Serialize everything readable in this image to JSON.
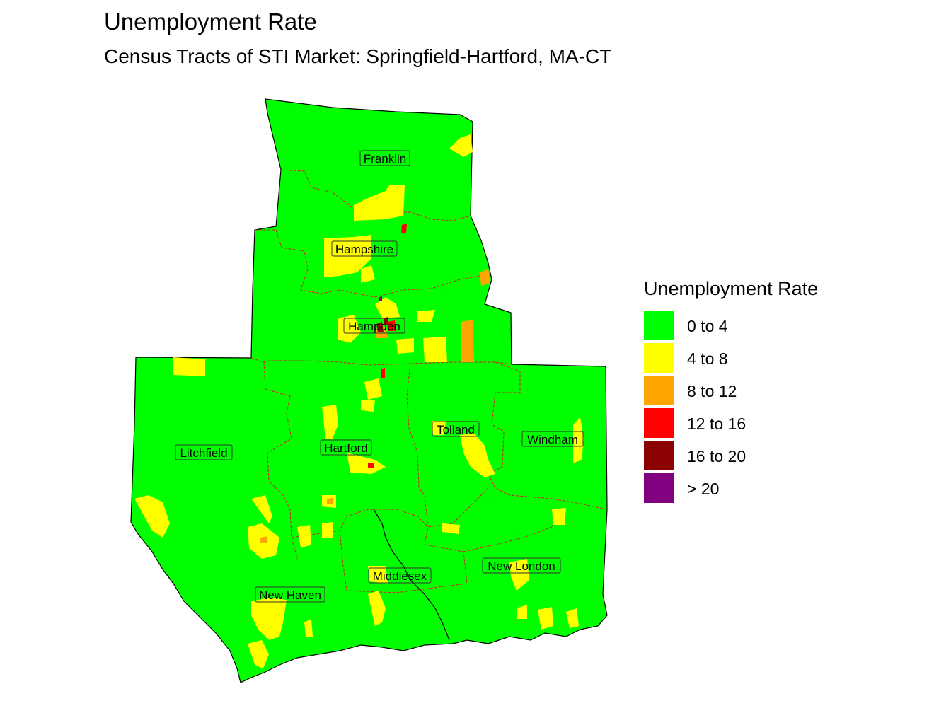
{
  "title": "Unemployment Rate",
  "subtitle": "Census Tracts of STI Market: Springfield-Hartford, MA-CT",
  "legend": {
    "title": "Unemployment Rate",
    "items": [
      {
        "label": "0 to 4",
        "color": "#00FF00"
      },
      {
        "label": "4 to 8",
        "color": "#FFFF00"
      },
      {
        "label": "8 to 12",
        "color": "#FFA500"
      },
      {
        "label": "12 to 16",
        "color": "#FF0000"
      },
      {
        "label": "16 to 20",
        "color": "#8B0000"
      },
      {
        "label": "> 20",
        "color": "#800080"
      }
    ]
  },
  "counties": {
    "franklin": "Franklin",
    "hampshire": "Hampshire",
    "hampden": "Hampden",
    "litchfield": "Litchfield",
    "hartford": "Hartford",
    "tolland": "Tolland",
    "windham": "Windham",
    "middlesex": "Middlesex",
    "new_london": "New London",
    "new_haven": "New Haven"
  },
  "colors": {
    "boundary": "#000000",
    "county_border": "#CC2222"
  }
}
